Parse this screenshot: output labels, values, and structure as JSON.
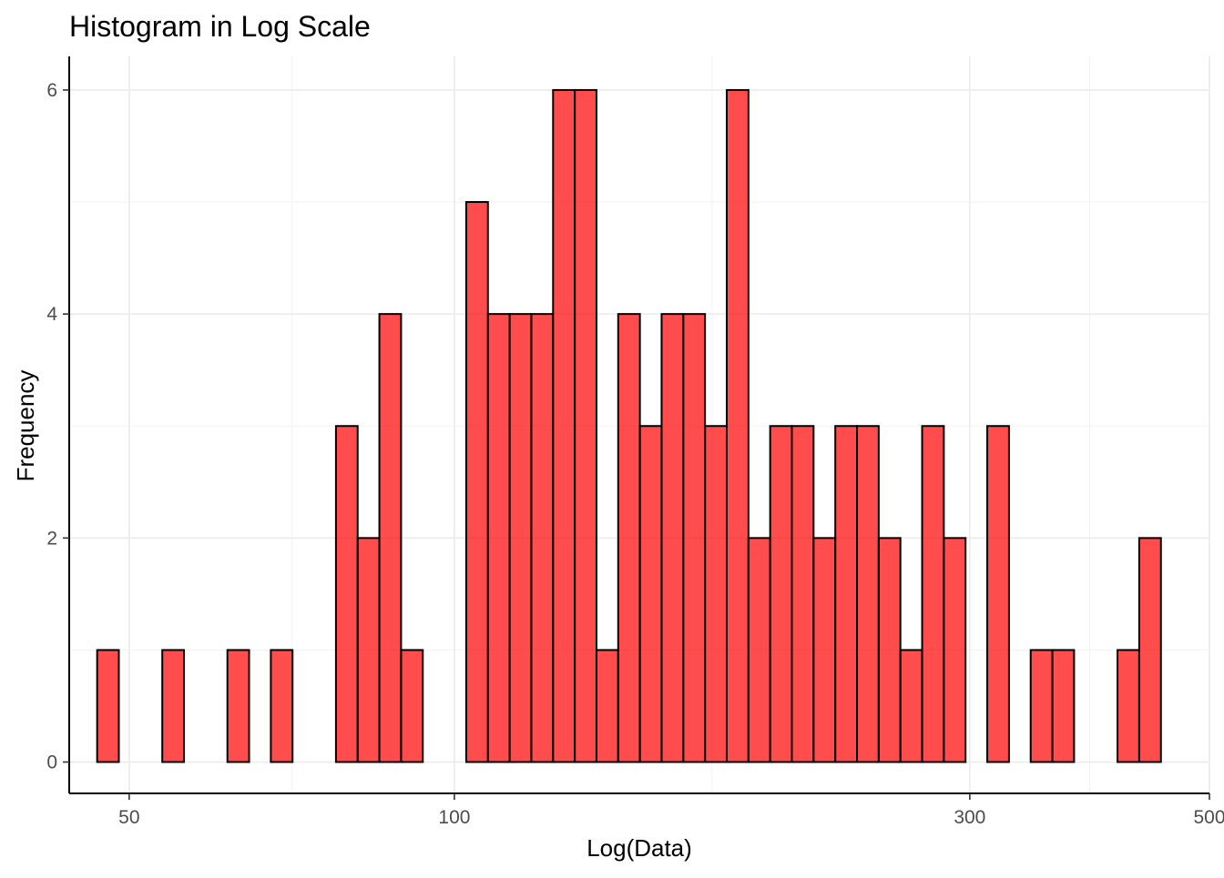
{
  "chart_data": {
    "type": "bar",
    "title": "Histogram in Log Scale",
    "xlabel": "Log(Data)",
    "ylabel": "Frequency",
    "x_scale": "log10",
    "xlim": [
      44,
      500
    ],
    "ylim": [
      -0.28,
      6.3
    ],
    "x_ticks": [
      50,
      100,
      300,
      500
    ],
    "y_ticks": [
      0,
      2,
      4,
      6
    ],
    "grid": true,
    "bar_color": "#ff0000",
    "bar_opacity": 0.7,
    "bar_edge_color": "#000000",
    "bins": {
      "start": 46.7,
      "end": 450.9,
      "counts": [
        1,
        0,
        0,
        1,
        0,
        0,
        1,
        0,
        1,
        0,
        0,
        3,
        2,
        4,
        1,
        0,
        0,
        5,
        4,
        4,
        4,
        6,
        6,
        1,
        4,
        3,
        4,
        4,
        3,
        6,
        2,
        3,
        3,
        2,
        3,
        3,
        2,
        1,
        3,
        2,
        0,
        3,
        0,
        1,
        1,
        0,
        0,
        1,
        2
      ]
    }
  }
}
